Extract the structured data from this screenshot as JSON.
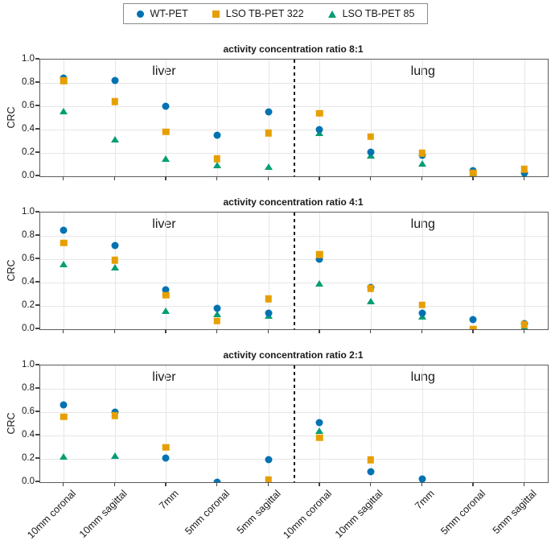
{
  "legend": {
    "items": [
      {
        "label": "WT-PET",
        "marker": "circle",
        "color": "#0072B2"
      },
      {
        "label": "LSO TB-PET 322",
        "marker": "square",
        "color": "#E69F00"
      },
      {
        "label": "LSO TB-PET 85",
        "marker": "triangle",
        "color": "#009E73"
      }
    ]
  },
  "ylabel": "CRC",
  "region_labels": {
    "left": "liver",
    "right": "lung"
  },
  "y_ticks": [
    "1.0",
    "0.8",
    "0.6",
    "0.4",
    "0.2",
    "0.0"
  ],
  "x_categories": [
    "10mm coronal",
    "10mm sagittal",
    "7mm",
    "5mm coronal",
    "5mm sagittal",
    "10mm coronal",
    "10mm sagittal",
    "7mm",
    "5mm coronal",
    "5mm sagittal"
  ],
  "chart_data": [
    {
      "type": "scatter",
      "title": "activity concentration ratio 8:1",
      "xlabel": "",
      "ylabel": "CRC",
      "ylim": [
        0.0,
        1.0
      ],
      "grid": true,
      "group_labels": [
        {
          "label": "liver",
          "categories": [
            0,
            1,
            2,
            3,
            4
          ]
        },
        {
          "label": "lung",
          "categories": [
            5,
            6,
            7,
            8,
            9
          ]
        }
      ],
      "divider_after_index": 4,
      "categories": [
        "10mm coronal",
        "10mm sagittal",
        "7mm",
        "5mm coronal",
        "5mm sagittal",
        "10mm coronal",
        "10mm sagittal",
        "7mm",
        "5mm coronal",
        "5mm sagittal"
      ],
      "series": [
        {
          "name": "WT-PET",
          "marker": "circle",
          "color": "#0072B2",
          "values": [
            0.84,
            0.82,
            0.6,
            0.35,
            0.55,
            0.4,
            0.21,
            0.18,
            0.05,
            0.03
          ]
        },
        {
          "name": "LSO TB-PET 322",
          "marker": "square",
          "color": "#E69F00",
          "values": [
            0.82,
            0.64,
            0.38,
            0.15,
            0.37,
            0.54,
            0.34,
            0.2,
            0.03,
            0.06
          ]
        },
        {
          "name": "LSO TB-PET 85",
          "marker": "triangle",
          "color": "#009E73",
          "values": [
            0.56,
            0.32,
            0.15,
            0.1,
            0.08,
            0.37,
            0.18,
            0.11,
            0.02,
            0.01
          ]
        }
      ]
    },
    {
      "type": "scatter",
      "title": "activity concentration ratio 4:1",
      "xlabel": "",
      "ylabel": "CRC",
      "ylim": [
        0.0,
        1.0
      ],
      "grid": true,
      "group_labels": [
        {
          "label": "liver",
          "categories": [
            0,
            1,
            2,
            3,
            4
          ]
        },
        {
          "label": "lung",
          "categories": [
            5,
            6,
            7,
            8,
            9
          ]
        }
      ],
      "divider_after_index": 4,
      "categories": [
        "10mm coronal",
        "10mm sagittal",
        "7mm",
        "5mm coronal",
        "5mm sagittal",
        "10mm coronal",
        "10mm sagittal",
        "7mm",
        "5mm coronal",
        "5mm sagittal"
      ],
      "series": [
        {
          "name": "WT-PET",
          "marker": "circle",
          "color": "#0072B2",
          "values": [
            0.85,
            0.72,
            0.34,
            0.18,
            0.14,
            0.6,
            0.36,
            0.14,
            0.08,
            0.05
          ]
        },
        {
          "name": "LSO TB-PET 322",
          "marker": "square",
          "color": "#E69F00",
          "values": [
            0.74,
            0.59,
            0.29,
            0.07,
            0.26,
            0.64,
            0.35,
            0.21,
            0.0,
            0.04
          ]
        },
        {
          "name": "LSO TB-PET 85",
          "marker": "triangle",
          "color": "#009E73",
          "values": [
            0.56,
            0.53,
            0.16,
            0.13,
            0.12,
            0.39,
            0.24,
            0.11,
            null,
            0.02
          ]
        }
      ]
    },
    {
      "type": "scatter",
      "title": "activity concentration ratio 2:1",
      "xlabel": "",
      "ylabel": "CRC",
      "ylim": [
        0.0,
        1.0
      ],
      "grid": true,
      "group_labels": [
        {
          "label": "liver",
          "categories": [
            0,
            1,
            2,
            3,
            4
          ]
        },
        {
          "label": "lung",
          "categories": [
            5,
            6,
            7,
            8,
            9
          ]
        }
      ],
      "divider_after_index": 4,
      "categories": [
        "10mm coronal",
        "10mm sagittal",
        "7mm",
        "5mm coronal",
        "5mm sagittal",
        "10mm coronal",
        "10mm sagittal",
        "7mm",
        "5mm coronal",
        "5mm sagittal"
      ],
      "series": [
        {
          "name": "WT-PET",
          "marker": "circle",
          "color": "#0072B2",
          "values": [
            0.66,
            0.6,
            0.21,
            0.0,
            0.19,
            0.51,
            0.09,
            0.03,
            null,
            null
          ]
        },
        {
          "name": "LSO TB-PET 322",
          "marker": "square",
          "color": "#E69F00",
          "values": [
            0.56,
            0.57,
            0.3,
            null,
            0.02,
            0.38,
            0.19,
            null,
            null,
            null
          ]
        },
        {
          "name": "LSO TB-PET 85",
          "marker": "triangle",
          "color": "#009E73",
          "values": [
            0.22,
            0.23,
            null,
            null,
            null,
            0.44,
            null,
            null,
            null,
            null
          ]
        }
      ]
    }
  ]
}
